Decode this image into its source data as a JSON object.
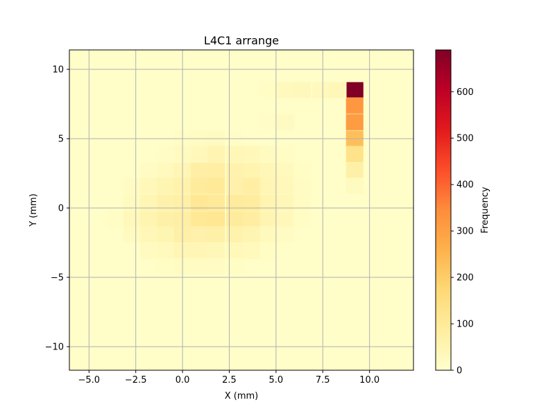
{
  "chart_data": {
    "type": "heatmap",
    "title": "L4C1 arrange",
    "xlabel": "X (mm)",
    "ylabel": "Y (mm)",
    "xlim": [
      -6.05,
      12.35
    ],
    "ylim": [
      -11.7,
      11.4
    ],
    "xticks": [
      -5.0,
      -2.5,
      0.0,
      2.5,
      5.0,
      7.5,
      10.0
    ],
    "xtick_labels": [
      "−5.0",
      "−2.5",
      "0.0",
      "2.5",
      "5.0",
      "7.5",
      "10.0"
    ],
    "yticks": [
      -10,
      -5,
      0,
      5,
      10
    ],
    "ytick_labels": [
      "−10",
      "−5",
      "0",
      "5",
      "10"
    ],
    "grid": true,
    "colormap": "YlOrRd",
    "colorbar": {
      "label": "Frequency",
      "range": [
        0,
        690
      ],
      "ticks": [
        0,
        100,
        200,
        300,
        400,
        500,
        600
      ],
      "tick_labels": [
        "0",
        "100",
        "200",
        "300",
        "400",
        "500",
        "600"
      ]
    },
    "background_value": 5,
    "x_range": [
      -6.05,
      12.35
    ],
    "y_range": [
      -11.7,
      11.4
    ],
    "cell_size": [
      0.92,
      1.155
    ],
    "cells": [
      [
        9.2,
        8.5,
        690
      ],
      [
        9.2,
        7.4,
        320
      ],
      [
        9.2,
        6.2,
        310
      ],
      [
        9.2,
        5.0,
        230
      ],
      [
        9.2,
        3.9,
        130
      ],
      [
        9.2,
        2.7,
        70
      ],
      [
        9.2,
        1.6,
        25
      ],
      [
        5.5,
        8.5,
        28
      ],
      [
        6.4,
        8.5,
        32
      ],
      [
        7.4,
        8.5,
        30
      ],
      [
        8.3,
        8.5,
        40
      ],
      [
        4.6,
        8.5,
        15
      ],
      [
        5.5,
        6.2,
        22
      ],
      [
        4.6,
        6.2,
        12
      ],
      [
        0.9,
        5.0,
        18
      ],
      [
        1.8,
        5.0,
        22
      ],
      [
        0.0,
        5.0,
        12
      ],
      [
        2.8,
        5.0,
        10
      ],
      [
        0.0,
        3.9,
        25
      ],
      [
        0.9,
        3.9,
        35
      ],
      [
        1.8,
        3.9,
        50
      ],
      [
        2.8,
        3.9,
        40
      ],
      [
        3.7,
        3.9,
        35
      ],
      [
        4.6,
        3.9,
        25
      ],
      [
        5.5,
        3.9,
        15
      ],
      [
        -0.9,
        3.9,
        12
      ],
      [
        -1.8,
        2.7,
        18
      ],
      [
        -0.9,
        2.7,
        30
      ],
      [
        0.0,
        2.7,
        45
      ],
      [
        0.9,
        2.7,
        75
      ],
      [
        1.8,
        2.7,
        80
      ],
      [
        2.8,
        2.7,
        60
      ],
      [
        3.7,
        2.7,
        55
      ],
      [
        4.6,
        2.7,
        40
      ],
      [
        5.5,
        2.7,
        30
      ],
      [
        6.4,
        2.7,
        15
      ],
      [
        -2.7,
        1.6,
        20
      ],
      [
        -1.8,
        1.6,
        35
      ],
      [
        -0.9,
        1.6,
        50
      ],
      [
        0.0,
        1.6,
        60
      ],
      [
        0.9,
        1.6,
        95
      ],
      [
        1.8,
        1.6,
        100
      ],
      [
        2.8,
        1.6,
        65
      ],
      [
        3.7,
        1.6,
        80
      ],
      [
        4.6,
        1.6,
        45
      ],
      [
        5.5,
        1.6,
        35
      ],
      [
        6.4,
        1.6,
        20
      ],
      [
        -2.7,
        0.4,
        25
      ],
      [
        -1.8,
        0.4,
        45
      ],
      [
        -0.9,
        0.4,
        65
      ],
      [
        0.0,
        0.4,
        70
      ],
      [
        0.9,
        0.4,
        110
      ],
      [
        1.8,
        0.4,
        100
      ],
      [
        2.8,
        0.4,
        95
      ],
      [
        3.7,
        0.4,
        90
      ],
      [
        4.6,
        0.4,
        55
      ],
      [
        5.5,
        0.4,
        40
      ],
      [
        6.4,
        0.4,
        20
      ],
      [
        -3.6,
        -0.8,
        15
      ],
      [
        -2.7,
        -0.8,
        35
      ],
      [
        -1.8,
        -0.8,
        55
      ],
      [
        -0.9,
        -0.8,
        70
      ],
      [
        0.0,
        -0.8,
        75
      ],
      [
        0.9,
        -0.8,
        105
      ],
      [
        1.8,
        -0.8,
        110
      ],
      [
        2.8,
        -0.8,
        95
      ],
      [
        3.7,
        -0.8,
        85
      ],
      [
        4.6,
        -0.8,
        50
      ],
      [
        5.5,
        -0.8,
        35
      ],
      [
        6.4,
        -0.8,
        15
      ],
      [
        -2.7,
        -1.9,
        25
      ],
      [
        -1.8,
        -1.9,
        40
      ],
      [
        -0.9,
        -1.9,
        50
      ],
      [
        0.0,
        -1.9,
        70
      ],
      [
        0.9,
        -1.9,
        65
      ],
      [
        1.8,
        -1.9,
        70
      ],
      [
        2.8,
        -1.9,
        60
      ],
      [
        3.7,
        -1.9,
        50
      ],
      [
        4.6,
        -1.9,
        30
      ],
      [
        5.5,
        -1.9,
        18
      ],
      [
        -1.8,
        -3.1,
        25
      ],
      [
        -0.9,
        -3.1,
        30
      ],
      [
        0.0,
        -3.1,
        45
      ],
      [
        0.9,
        -3.1,
        45
      ],
      [
        1.8,
        -3.1,
        40
      ],
      [
        2.8,
        -3.1,
        35
      ],
      [
        3.7,
        -3.1,
        28
      ],
      [
        4.6,
        -3.1,
        15
      ],
      [
        -0.9,
        -4.2,
        15
      ],
      [
        0.0,
        -4.2,
        20
      ],
      [
        0.9,
        -4.2,
        20
      ],
      [
        1.8,
        -4.2,
        18
      ],
      [
        2.8,
        -4.2,
        15
      ]
    ]
  }
}
